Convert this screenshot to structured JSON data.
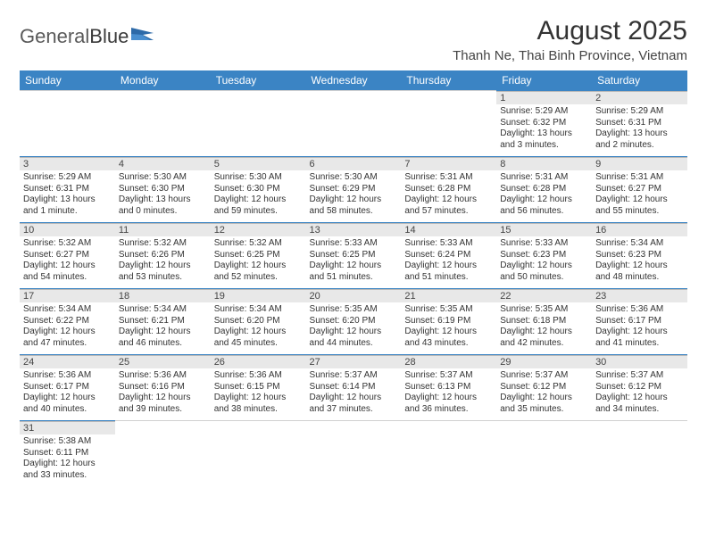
{
  "branding": {
    "logo_part1": "General",
    "logo_part2": "Blue"
  },
  "header": {
    "month_title": "August 2025",
    "location": "Thanh Ne, Thai Binh Province, Vietnam"
  },
  "colors": {
    "header_bar": "#3b84c4",
    "header_text": "#ffffff",
    "daynum_bg": "#e8e8e8",
    "cell_border": "#3b84c4",
    "body_text": "#333333"
  },
  "weekdays": [
    "Sunday",
    "Monday",
    "Tuesday",
    "Wednesday",
    "Thursday",
    "Friday",
    "Saturday"
  ],
  "weeks": [
    [
      null,
      null,
      null,
      null,
      null,
      {
        "day": "1",
        "sunrise": "Sunrise: 5:29 AM",
        "sunset": "Sunset: 6:32 PM",
        "daylight1": "Daylight: 13 hours",
        "daylight2": "and 3 minutes."
      },
      {
        "day": "2",
        "sunrise": "Sunrise: 5:29 AM",
        "sunset": "Sunset: 6:31 PM",
        "daylight1": "Daylight: 13 hours",
        "daylight2": "and 2 minutes."
      }
    ],
    [
      {
        "day": "3",
        "sunrise": "Sunrise: 5:29 AM",
        "sunset": "Sunset: 6:31 PM",
        "daylight1": "Daylight: 13 hours",
        "daylight2": "and 1 minute."
      },
      {
        "day": "4",
        "sunrise": "Sunrise: 5:30 AM",
        "sunset": "Sunset: 6:30 PM",
        "daylight1": "Daylight: 13 hours",
        "daylight2": "and 0 minutes."
      },
      {
        "day": "5",
        "sunrise": "Sunrise: 5:30 AM",
        "sunset": "Sunset: 6:30 PM",
        "daylight1": "Daylight: 12 hours",
        "daylight2": "and 59 minutes."
      },
      {
        "day": "6",
        "sunrise": "Sunrise: 5:30 AM",
        "sunset": "Sunset: 6:29 PM",
        "daylight1": "Daylight: 12 hours",
        "daylight2": "and 58 minutes."
      },
      {
        "day": "7",
        "sunrise": "Sunrise: 5:31 AM",
        "sunset": "Sunset: 6:28 PM",
        "daylight1": "Daylight: 12 hours",
        "daylight2": "and 57 minutes."
      },
      {
        "day": "8",
        "sunrise": "Sunrise: 5:31 AM",
        "sunset": "Sunset: 6:28 PM",
        "daylight1": "Daylight: 12 hours",
        "daylight2": "and 56 minutes."
      },
      {
        "day": "9",
        "sunrise": "Sunrise: 5:31 AM",
        "sunset": "Sunset: 6:27 PM",
        "daylight1": "Daylight: 12 hours",
        "daylight2": "and 55 minutes."
      }
    ],
    [
      {
        "day": "10",
        "sunrise": "Sunrise: 5:32 AM",
        "sunset": "Sunset: 6:27 PM",
        "daylight1": "Daylight: 12 hours",
        "daylight2": "and 54 minutes."
      },
      {
        "day": "11",
        "sunrise": "Sunrise: 5:32 AM",
        "sunset": "Sunset: 6:26 PM",
        "daylight1": "Daylight: 12 hours",
        "daylight2": "and 53 minutes."
      },
      {
        "day": "12",
        "sunrise": "Sunrise: 5:32 AM",
        "sunset": "Sunset: 6:25 PM",
        "daylight1": "Daylight: 12 hours",
        "daylight2": "and 52 minutes."
      },
      {
        "day": "13",
        "sunrise": "Sunrise: 5:33 AM",
        "sunset": "Sunset: 6:25 PM",
        "daylight1": "Daylight: 12 hours",
        "daylight2": "and 51 minutes."
      },
      {
        "day": "14",
        "sunrise": "Sunrise: 5:33 AM",
        "sunset": "Sunset: 6:24 PM",
        "daylight1": "Daylight: 12 hours",
        "daylight2": "and 51 minutes."
      },
      {
        "day": "15",
        "sunrise": "Sunrise: 5:33 AM",
        "sunset": "Sunset: 6:23 PM",
        "daylight1": "Daylight: 12 hours",
        "daylight2": "and 50 minutes."
      },
      {
        "day": "16",
        "sunrise": "Sunrise: 5:34 AM",
        "sunset": "Sunset: 6:23 PM",
        "daylight1": "Daylight: 12 hours",
        "daylight2": "and 48 minutes."
      }
    ],
    [
      {
        "day": "17",
        "sunrise": "Sunrise: 5:34 AM",
        "sunset": "Sunset: 6:22 PM",
        "daylight1": "Daylight: 12 hours",
        "daylight2": "and 47 minutes."
      },
      {
        "day": "18",
        "sunrise": "Sunrise: 5:34 AM",
        "sunset": "Sunset: 6:21 PM",
        "daylight1": "Daylight: 12 hours",
        "daylight2": "and 46 minutes."
      },
      {
        "day": "19",
        "sunrise": "Sunrise: 5:34 AM",
        "sunset": "Sunset: 6:20 PM",
        "daylight1": "Daylight: 12 hours",
        "daylight2": "and 45 minutes."
      },
      {
        "day": "20",
        "sunrise": "Sunrise: 5:35 AM",
        "sunset": "Sunset: 6:20 PM",
        "daylight1": "Daylight: 12 hours",
        "daylight2": "and 44 minutes."
      },
      {
        "day": "21",
        "sunrise": "Sunrise: 5:35 AM",
        "sunset": "Sunset: 6:19 PM",
        "daylight1": "Daylight: 12 hours",
        "daylight2": "and 43 minutes."
      },
      {
        "day": "22",
        "sunrise": "Sunrise: 5:35 AM",
        "sunset": "Sunset: 6:18 PM",
        "daylight1": "Daylight: 12 hours",
        "daylight2": "and 42 minutes."
      },
      {
        "day": "23",
        "sunrise": "Sunrise: 5:36 AM",
        "sunset": "Sunset: 6:17 PM",
        "daylight1": "Daylight: 12 hours",
        "daylight2": "and 41 minutes."
      }
    ],
    [
      {
        "day": "24",
        "sunrise": "Sunrise: 5:36 AM",
        "sunset": "Sunset: 6:17 PM",
        "daylight1": "Daylight: 12 hours",
        "daylight2": "and 40 minutes."
      },
      {
        "day": "25",
        "sunrise": "Sunrise: 5:36 AM",
        "sunset": "Sunset: 6:16 PM",
        "daylight1": "Daylight: 12 hours",
        "daylight2": "and 39 minutes."
      },
      {
        "day": "26",
        "sunrise": "Sunrise: 5:36 AM",
        "sunset": "Sunset: 6:15 PM",
        "daylight1": "Daylight: 12 hours",
        "daylight2": "and 38 minutes."
      },
      {
        "day": "27",
        "sunrise": "Sunrise: 5:37 AM",
        "sunset": "Sunset: 6:14 PM",
        "daylight1": "Daylight: 12 hours",
        "daylight2": "and 37 minutes."
      },
      {
        "day": "28",
        "sunrise": "Sunrise: 5:37 AM",
        "sunset": "Sunset: 6:13 PM",
        "daylight1": "Daylight: 12 hours",
        "daylight2": "and 36 minutes."
      },
      {
        "day": "29",
        "sunrise": "Sunrise: 5:37 AM",
        "sunset": "Sunset: 6:12 PM",
        "daylight1": "Daylight: 12 hours",
        "daylight2": "and 35 minutes."
      },
      {
        "day": "30",
        "sunrise": "Sunrise: 5:37 AM",
        "sunset": "Sunset: 6:12 PM",
        "daylight1": "Daylight: 12 hours",
        "daylight2": "and 34 minutes."
      }
    ],
    [
      {
        "day": "31",
        "sunrise": "Sunrise: 5:38 AM",
        "sunset": "Sunset: 6:11 PM",
        "daylight1": "Daylight: 12 hours",
        "daylight2": "and 33 minutes."
      },
      null,
      null,
      null,
      null,
      null,
      null
    ]
  ]
}
